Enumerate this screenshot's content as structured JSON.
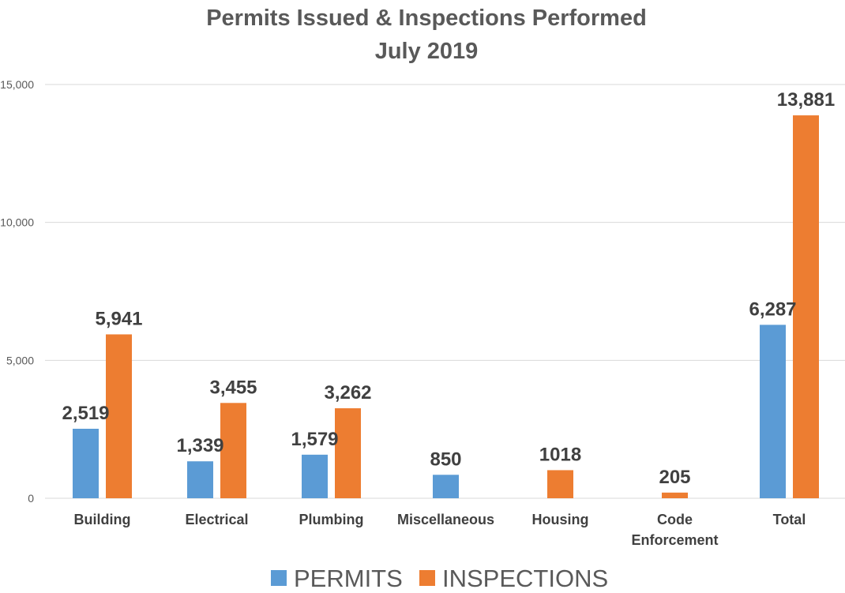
{
  "chart_data": {
    "type": "bar",
    "title": [
      "Permits Issued & Inspections Performed",
      "July 2019"
    ],
    "categories": [
      [
        "Building"
      ],
      [
        "Electrical"
      ],
      [
        "Plumbing"
      ],
      [
        "Miscellaneous"
      ],
      [
        "Housing"
      ],
      [
        "Code",
        "Enforcement"
      ],
      [
        "Total"
      ]
    ],
    "series": [
      {
        "name": "PERMITS",
        "color": "#5b9bd5",
        "values": [
          2519,
          1339,
          1579,
          850,
          null,
          null,
          6287
        ],
        "labels": [
          "2,519",
          "1,339",
          "1,579",
          "850",
          "",
          "",
          "6,287"
        ]
      },
      {
        "name": "INSPECTIONS",
        "color": "#ed7d31",
        "values": [
          5941,
          3455,
          3262,
          null,
          1018,
          205,
          13881
        ],
        "labels": [
          "5,941",
          "3,455",
          "3,262",
          "",
          "1018",
          "205",
          "13,881"
        ]
      }
    ],
    "ylim": [
      0,
      15000
    ],
    "yticks": [
      0,
      5000,
      10000,
      15000
    ],
    "ytick_labels": [
      "0",
      "5,000",
      "10,000",
      "15,000"
    ],
    "grid": true,
    "legend_position": "bottom"
  }
}
